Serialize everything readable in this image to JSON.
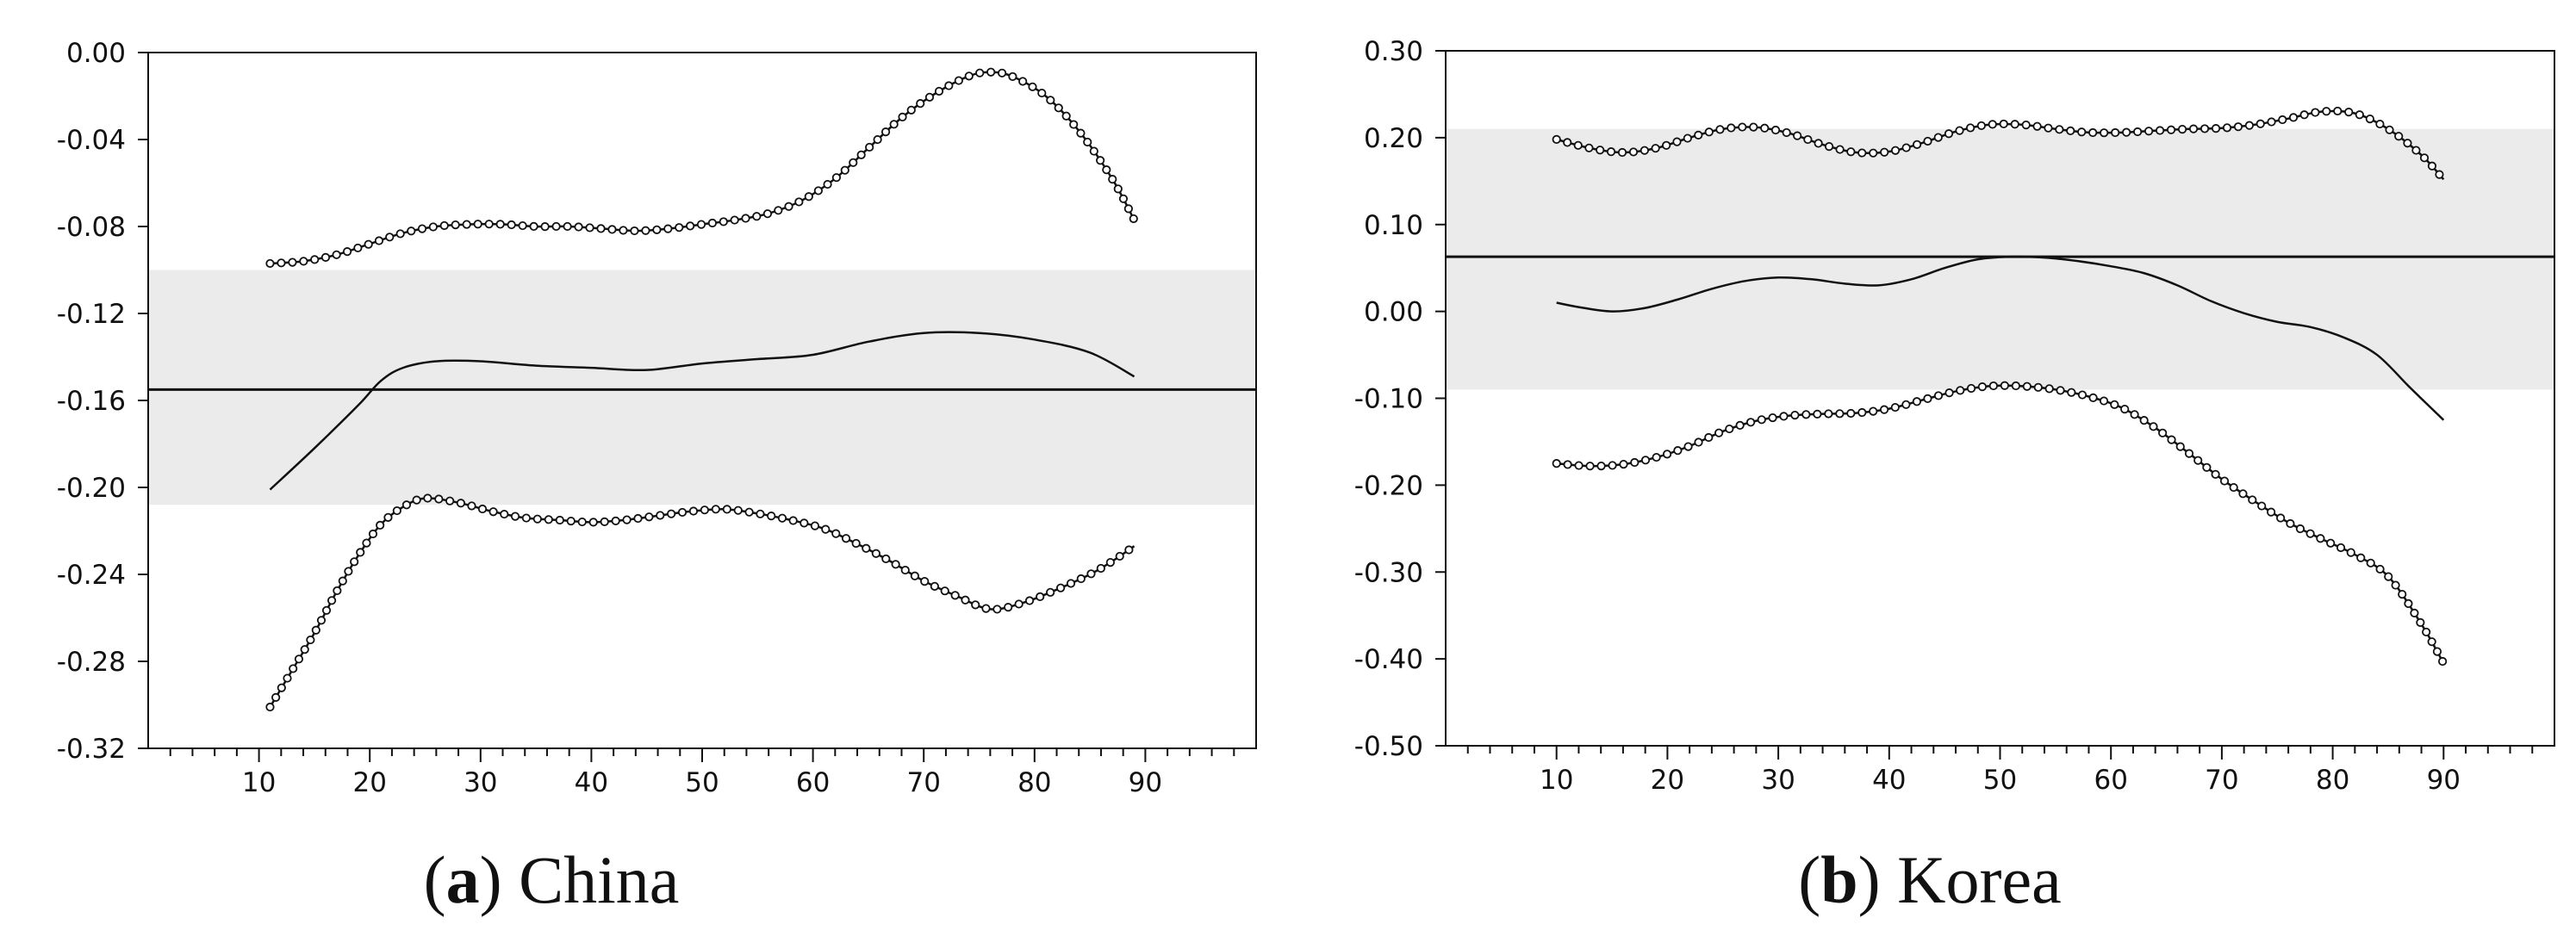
{
  "chart_data": [
    {
      "type": "line",
      "caption": {
        "open": "(",
        "letter": "a",
        "close": ")",
        "label": " China"
      },
      "xlim": [
        0,
        100
      ],
      "ylim": [
        -0.32,
        0.0
      ],
      "x_ticks": [
        10,
        20,
        30,
        40,
        50,
        60,
        70,
        80,
        90
      ],
      "y_ticks": [
        "0.00",
        "-0.04",
        "-0.08",
        "-0.12",
        "-0.16",
        "-0.20",
        "-0.24",
        "-0.28",
        "-0.32"
      ],
      "y_tick_values": [
        0.0,
        -0.04,
        -0.08,
        -0.12,
        -0.16,
        -0.2,
        -0.24,
        -0.28,
        -0.32
      ],
      "band": [
        -0.208,
        -0.1
      ],
      "reference_line": -0.155,
      "series": [
        {
          "name": "upper",
          "style": "dotted",
          "x": [
            11,
            14,
            17,
            20,
            23,
            26,
            29,
            32,
            35,
            38,
            41,
            44,
            47,
            50,
            53,
            56,
            59,
            62,
            65,
            68,
            71,
            74,
            76,
            78,
            81,
            84,
            87,
            89
          ],
          "y": [
            -0.097,
            -0.096,
            -0.093,
            -0.088,
            -0.083,
            -0.08,
            -0.079,
            -0.079,
            -0.08,
            -0.08,
            -0.081,
            -0.082,
            -0.081,
            -0.079,
            -0.077,
            -0.074,
            -0.068,
            -0.058,
            -0.044,
            -0.03,
            -0.019,
            -0.011,
            -0.009,
            -0.011,
            -0.02,
            -0.036,
            -0.058,
            -0.077
          ]
        },
        {
          "name": "estimate",
          "style": "solid",
          "x": [
            11,
            15,
            19,
            21,
            23,
            26,
            30,
            35,
            40,
            45,
            50,
            55,
            60,
            65,
            70,
            75,
            80,
            85,
            89
          ],
          "y": [
            -0.201,
            -0.182,
            -0.162,
            -0.151,
            -0.145,
            -0.142,
            -0.142,
            -0.144,
            -0.145,
            -0.146,
            -0.143,
            -0.141,
            -0.139,
            -0.133,
            -0.129,
            -0.129,
            -0.132,
            -0.138,
            -0.149
          ]
        },
        {
          "name": "lower",
          "style": "dotted",
          "x": [
            11,
            13,
            15,
            17,
            19,
            21,
            23,
            25,
            28,
            31,
            34,
            37,
            40,
            43,
            46,
            49,
            52,
            55,
            58,
            61,
            64,
            67,
            70,
            73,
            76,
            79,
            82,
            85,
            87,
            89
          ],
          "y": [
            -0.301,
            -0.284,
            -0.267,
            -0.248,
            -0.231,
            -0.217,
            -0.209,
            -0.205,
            -0.207,
            -0.211,
            -0.214,
            -0.215,
            -0.216,
            -0.215,
            -0.213,
            -0.211,
            -0.21,
            -0.212,
            -0.215,
            -0.219,
            -0.226,
            -0.234,
            -0.243,
            -0.25,
            -0.256,
            -0.253,
            -0.247,
            -0.24,
            -0.234,
            -0.227
          ]
        }
      ]
    },
    {
      "type": "line",
      "caption": {
        "open": "(",
        "letter": "b",
        "close": ")",
        "label": " Korea"
      },
      "xlim": [
        0,
        100
      ],
      "ylim": [
        -0.5,
        0.3
      ],
      "x_ticks": [
        10,
        20,
        30,
        40,
        50,
        60,
        70,
        80,
        90
      ],
      "y_ticks": [
        "0.30",
        "0.20",
        "0.10",
        "0.00",
        "-0.10",
        "-0.20",
        "-0.30",
        "-0.40",
        "-0.50"
      ],
      "y_tick_values": [
        0.3,
        0.2,
        0.1,
        0.0,
        -0.1,
        -0.2,
        -0.3,
        -0.4,
        -0.5
      ],
      "band": [
        -0.09,
        0.21
      ],
      "reference_line": 0.063,
      "series": [
        {
          "name": "upper",
          "style": "dotted",
          "x": [
            10,
            13,
            16,
            19,
            22,
            25,
            28,
            31,
            34,
            37,
            40,
            43,
            46,
            49,
            52,
            55,
            58,
            61,
            64,
            67,
            70,
            73,
            76,
            79,
            82,
            85,
            88,
            90
          ],
          "y": [
            0.198,
            0.188,
            0.183,
            0.188,
            0.2,
            0.21,
            0.212,
            0.205,
            0.192,
            0.183,
            0.184,
            0.194,
            0.207,
            0.215,
            0.215,
            0.21,
            0.206,
            0.206,
            0.208,
            0.21,
            0.211,
            0.215,
            0.222,
            0.23,
            0.228,
            0.21,
            0.18,
            0.152
          ]
        },
        {
          "name": "estimate",
          "style": "solid",
          "x": [
            10,
            12,
            15,
            18,
            21,
            24,
            27,
            30,
            33,
            36,
            39,
            42,
            45,
            48,
            51,
            54,
            57,
            60,
            63,
            66,
            69,
            72,
            75,
            78,
            81,
            84,
            87,
            90
          ],
          "y": [
            0.01,
            0.005,
            0.0,
            0.004,
            0.014,
            0.026,
            0.035,
            0.039,
            0.037,
            0.032,
            0.03,
            0.037,
            0.05,
            0.06,
            0.063,
            0.062,
            0.058,
            0.052,
            0.044,
            0.03,
            0.012,
            -0.002,
            -0.012,
            -0.018,
            -0.03,
            -0.05,
            -0.088,
            -0.125
          ]
        },
        {
          "name": "lower",
          "style": "dotted",
          "x": [
            10,
            13,
            16,
            19,
            22,
            25,
            28,
            31,
            34,
            37,
            40,
            43,
            46,
            49,
            52,
            55,
            58,
            61,
            64,
            67,
            70,
            73,
            76,
            79,
            82,
            85,
            88,
            90
          ],
          "y": [
            -0.175,
            -0.178,
            -0.176,
            -0.168,
            -0.155,
            -0.138,
            -0.126,
            -0.12,
            -0.118,
            -0.117,
            -0.112,
            -0.102,
            -0.092,
            -0.086,
            -0.086,
            -0.09,
            -0.098,
            -0.111,
            -0.134,
            -0.163,
            -0.193,
            -0.219,
            -0.243,
            -0.262,
            -0.28,
            -0.305,
            -0.36,
            -0.405
          ]
        }
      ]
    }
  ]
}
